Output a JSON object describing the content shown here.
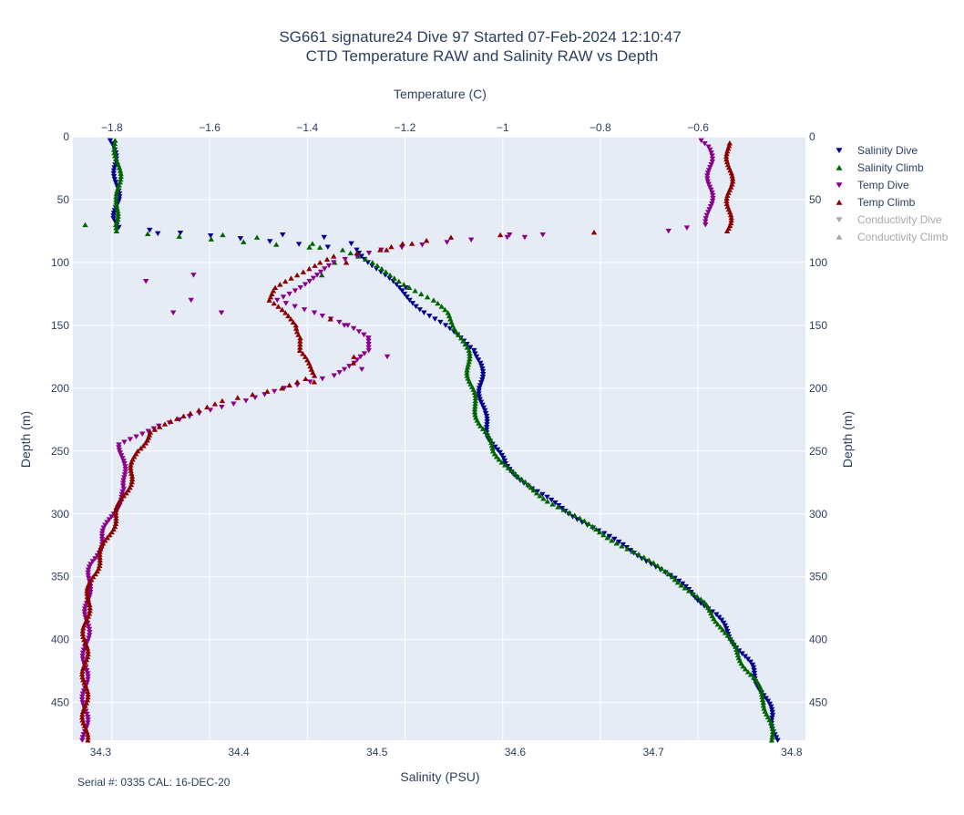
{
  "chart_data": {
    "type": "scatter",
    "title": "SG661 signature24 Dive 97 Started 07-Feb-2024 12:10:47",
    "subtitle": "CTD Temperature RAW and Salinity RAW vs Depth",
    "xlabel_bottom": "Salinity (PSU)",
    "xlabel_top": "Temperature (C)",
    "ylabel": "Depth (m)",
    "footnote": "Serial #: 0335  CAL: 16-DEC-20",
    "salinity_range": [
      34.28,
      34.81
    ],
    "temperature_range": [
      -1.88,
      -0.38
    ],
    "depth_range": [
      0,
      480
    ],
    "y_reversed": true,
    "grid": true,
    "legend_position": "right",
    "salinity_ticks": [
      "34.3",
      "34.4",
      "34.5",
      "34.6",
      "34.7",
      "34.8"
    ],
    "temperature_ticks": [
      "−1.8",
      "−1.6",
      "−1.4",
      "−1.2",
      "−1",
      "−0.8",
      "−0.6"
    ],
    "depth_ticks": [
      "0",
      "50",
      "100",
      "150",
      "200",
      "250",
      "300",
      "350",
      "400",
      "450"
    ],
    "colors": {
      "salinity_dive": "#00008b",
      "salinity_climb": "#006400",
      "temp_dive": "#8b008b",
      "temp_climb": "#8b0000",
      "conductivity_dive": "#a8a8a8",
      "conductivity_climb": "#a8a8a8",
      "plot_bg": "#e5ecf6",
      "grid": "#ffffff"
    },
    "series": [
      {
        "name": "Salinity Dive",
        "axis": "salinity",
        "marker": "triangle-down",
        "visible": true,
        "profile": [
          [
            3,
            34.307
          ],
          [
            20,
            34.311
          ],
          [
            50,
            34.312
          ],
          [
            65,
            34.311
          ],
          [
            72,
            34.313
          ],
          [
            90,
            34.486
          ],
          [
            100,
            34.495
          ],
          [
            110,
            34.505
          ],
          [
            120,
            34.515
          ],
          [
            130,
            34.525
          ],
          [
            140,
            34.535
          ],
          [
            150,
            34.548
          ],
          [
            160,
            34.56
          ],
          [
            170,
            34.572
          ],
          [
            180,
            34.575
          ],
          [
            200,
            34.575
          ],
          [
            220,
            34.577
          ],
          [
            240,
            34.582
          ],
          [
            260,
            34.592
          ],
          [
            280,
            34.612
          ],
          [
            300,
            34.64
          ],
          [
            320,
            34.67
          ],
          [
            340,
            34.7
          ],
          [
            360,
            34.725
          ],
          [
            380,
            34.745
          ],
          [
            400,
            34.757
          ],
          [
            420,
            34.77
          ],
          [
            440,
            34.778
          ],
          [
            460,
            34.786
          ],
          [
            480,
            34.789
          ]
        ],
        "extra": [
          [
            77,
            34.34
          ],
          [
            78,
            34.43
          ],
          [
            80,
            34.46
          ],
          [
            85,
            34.48
          ],
          [
            120,
            34.52
          ]
        ]
      },
      {
        "name": "Salinity Climb",
        "axis": "salinity",
        "marker": "triangle-up",
        "visible": true,
        "profile": [
          [
            3,
            34.31
          ],
          [
            20,
            34.313
          ],
          [
            50,
            34.313
          ],
          [
            70,
            34.31
          ],
          [
            75,
            34.312
          ],
          [
            90,
            34.475
          ],
          [
            100,
            34.495
          ],
          [
            110,
            34.51
          ],
          [
            120,
            34.525
          ],
          [
            130,
            34.54
          ],
          [
            140,
            34.55
          ],
          [
            150,
            34.556
          ],
          [
            160,
            34.562
          ],
          [
            170,
            34.565
          ],
          [
            190,
            34.567
          ],
          [
            210,
            34.57
          ],
          [
            230,
            34.575
          ],
          [
            250,
            34.585
          ],
          [
            270,
            34.6
          ],
          [
            290,
            34.625
          ],
          [
            310,
            34.655
          ],
          [
            330,
            34.685
          ],
          [
            350,
            34.715
          ],
          [
            370,
            34.735
          ],
          [
            390,
            34.75
          ],
          [
            410,
            34.76
          ],
          [
            430,
            34.772
          ],
          [
            450,
            34.781
          ],
          [
            480,
            34.786
          ]
        ],
        "extra": [
          [
            70,
            34.29
          ],
          [
            78,
            34.39
          ],
          [
            80,
            34.415
          ],
          [
            85,
            34.455
          ],
          [
            88,
            34.46
          ],
          [
            100,
            34.47
          ],
          [
            110,
            34.46
          ]
        ]
      },
      {
        "name": "Temp Dive",
        "axis": "temperature",
        "marker": "triangle-down",
        "visible": true,
        "profile": [
          [
            3,
            -0.59
          ],
          [
            8,
            -0.58
          ],
          [
            20,
            -0.575
          ],
          [
            40,
            -0.575
          ],
          [
            60,
            -0.576
          ],
          [
            70,
            -0.58
          ],
          [
            75,
            -0.66
          ],
          [
            78,
            -0.92
          ],
          [
            82,
            -1.07
          ],
          [
            86,
            -1.17
          ],
          [
            90,
            -1.25
          ],
          [
            100,
            -1.34
          ],
          [
            110,
            -1.38
          ],
          [
            120,
            -1.42
          ],
          [
            130,
            -1.46
          ],
          [
            140,
            -1.38
          ],
          [
            150,
            -1.32
          ],
          [
            160,
            -1.28
          ],
          [
            170,
            -1.27
          ],
          [
            180,
            -1.3
          ],
          [
            190,
            -1.35
          ],
          [
            200,
            -1.45
          ],
          [
            210,
            -1.52
          ],
          [
            220,
            -1.62
          ],
          [
            230,
            -1.71
          ],
          [
            245,
            -1.78
          ],
          [
            260,
            -1.78
          ],
          [
            280,
            -1.77
          ],
          [
            300,
            -1.8
          ],
          [
            320,
            -1.82
          ],
          [
            340,
            -1.84
          ],
          [
            360,
            -1.85
          ],
          [
            380,
            -1.85
          ],
          [
            420,
            -1.855
          ],
          [
            480,
            -1.855
          ]
        ],
        "extra": [
          [
            78,
            -0.98
          ],
          [
            80,
            -0.95
          ],
          [
            110,
            -1.63
          ],
          [
            115,
            -1.73
          ],
          [
            130,
            -1.64
          ],
          [
            140,
            -1.58
          ],
          [
            140,
            -1.68
          ],
          [
            150,
            -1.33
          ],
          [
            160,
            -1.28
          ],
          [
            175,
            -1.24
          ],
          [
            185,
            -1.29
          ]
        ]
      },
      {
        "name": "Temp Climb",
        "axis": "temperature",
        "marker": "triangle-up",
        "visible": true,
        "profile": [
          [
            5,
            -0.54
          ],
          [
            20,
            -0.535
          ],
          [
            40,
            -0.535
          ],
          [
            60,
            -0.536
          ],
          [
            75,
            -0.54
          ],
          [
            76,
            -0.81
          ],
          [
            78,
            -1.0
          ],
          [
            80,
            -1.1
          ],
          [
            85,
            -1.2
          ],
          [
            90,
            -1.25
          ],
          [
            95,
            -1.35
          ],
          [
            100,
            -1.38
          ],
          [
            110,
            -1.42
          ],
          [
            120,
            -1.46
          ],
          [
            130,
            -1.48
          ],
          [
            140,
            -1.45
          ],
          [
            150,
            -1.42
          ],
          [
            160,
            -1.41
          ],
          [
            170,
            -1.42
          ],
          [
            180,
            -1.4
          ],
          [
            190,
            -1.38
          ],
          [
            200,
            -1.45
          ],
          [
            210,
            -1.58
          ],
          [
            220,
            -1.64
          ],
          [
            235,
            -1.72
          ],
          [
            250,
            -1.75
          ],
          [
            270,
            -1.76
          ],
          [
            290,
            -1.78
          ],
          [
            310,
            -1.8
          ],
          [
            330,
            -1.82
          ],
          [
            350,
            -1.84
          ],
          [
            370,
            -1.85
          ],
          [
            400,
            -1.855
          ],
          [
            480,
            -1.855
          ]
        ],
        "extra": [
          [
            85,
            -1.19
          ],
          [
            90,
            -1.24
          ],
          [
            100,
            -1.32
          ],
          [
            145,
            -1.35
          ],
          [
            175,
            -1.3
          ],
          [
            180,
            -1.3
          ],
          [
            195,
            -1.38
          ]
        ]
      },
      {
        "name": "Conductivity Dive",
        "axis": "salinity",
        "marker": "triangle-down",
        "visible": false,
        "profile": [],
        "extra": []
      },
      {
        "name": "Conductivity Climb",
        "axis": "salinity",
        "marker": "triangle-up",
        "visible": false,
        "profile": [],
        "extra": []
      }
    ]
  }
}
